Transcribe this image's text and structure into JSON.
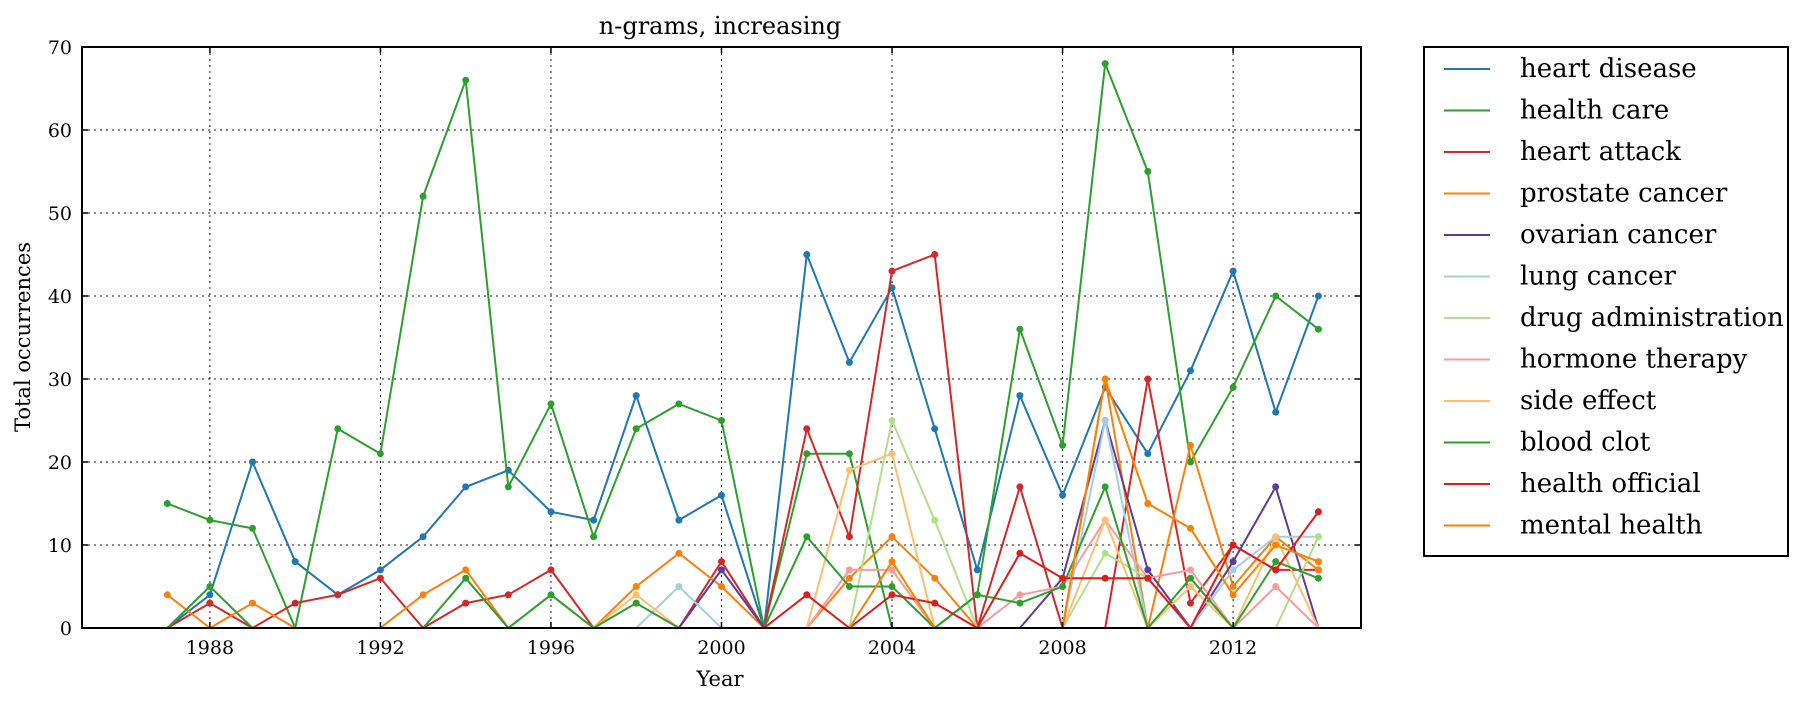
{
  "chart_data": {
    "type": "line",
    "title": "n-grams, increasing",
    "xlabel": "Year",
    "ylabel": "Total occurrences",
    "xlim": [
      1985,
      2015
    ],
    "ylim": [
      0,
      70
    ],
    "xticks": [
      1988,
      1992,
      1996,
      2000,
      2004,
      2008,
      2012
    ],
    "yticks": [
      0,
      10,
      20,
      30,
      40,
      50,
      60,
      70
    ],
    "grid": true,
    "legend_position": "outside-right",
    "x": [
      1987,
      1988,
      1989,
      1990,
      1991,
      1992,
      1993,
      1994,
      1995,
      1996,
      1997,
      1998,
      1999,
      2000,
      2001,
      2002,
      2003,
      2004,
      2005,
      2006,
      2007,
      2008,
      2009,
      2010,
      2011,
      2012,
      2013,
      2014
    ],
    "series": [
      {
        "name": "heart disease",
        "color": "#1f77b4",
        "values": [
          0,
          4,
          20,
          8,
          4,
          7,
          11,
          17,
          19,
          14,
          13,
          28,
          13,
          16,
          0,
          45,
          32,
          41,
          24,
          7,
          28,
          16,
          29,
          21,
          31,
          43,
          26,
          40
        ]
      },
      {
        "name": "health care",
        "color": "#2ca02c",
        "values": [
          15,
          13,
          12,
          0,
          24,
          21,
          52,
          66,
          17,
          27,
          11,
          24,
          27,
          25,
          0,
          21,
          21,
          0,
          0,
          4,
          36,
          22,
          68,
          55,
          20,
          29,
          40,
          36
        ]
      },
      {
        "name": "heart attack",
        "color": "#d62728",
        "values": [
          0,
          3,
          0,
          3,
          4,
          6,
          0,
          3,
          4,
          7,
          0,
          0,
          0,
          8,
          0,
          24,
          11,
          43,
          45,
          0,
          17,
          0,
          0,
          30,
          3,
          10,
          7,
          7
        ]
      },
      {
        "name": "prostate cancer",
        "color": "#ff7f0e",
        "values": [
          4,
          0,
          3,
          0,
          0,
          0,
          4,
          7,
          0,
          0,
          0,
          5,
          9,
          5,
          0,
          0,
          6,
          11,
          6,
          0,
          0,
          0,
          30,
          0,
          22,
          5,
          11,
          7
        ]
      },
      {
        "name": "ovarian cancer",
        "color": "#5e3c99",
        "values": [
          0,
          0,
          0,
          0,
          0,
          0,
          0,
          0,
          0,
          0,
          0,
          0,
          0,
          7,
          0,
          0,
          0,
          0,
          0,
          0,
          0,
          6,
          25,
          7,
          0,
          8,
          17,
          0
        ]
      },
      {
        "name": "lung cancer",
        "color": "#a6cee3",
        "values": [
          0,
          0,
          0,
          0,
          0,
          0,
          0,
          0,
          0,
          0,
          0,
          0,
          5,
          0,
          0,
          0,
          0,
          0,
          0,
          0,
          0,
          0,
          25,
          0,
          0,
          7,
          11,
          11
        ]
      },
      {
        "name": "drug administration",
        "color": "#b2df8a",
        "values": [
          0,
          0,
          0,
          0,
          0,
          0,
          0,
          0,
          0,
          4,
          0,
          0,
          0,
          0,
          0,
          0,
          0,
          25,
          13,
          0,
          0,
          0,
          9,
          6,
          0,
          0,
          0,
          11
        ]
      },
      {
        "name": "hormone therapy",
        "color": "#fb9a99",
        "values": [
          0,
          0,
          0,
          0,
          0,
          0,
          0,
          0,
          0,
          0,
          0,
          0,
          0,
          0,
          0,
          0,
          7,
          7,
          0,
          0,
          4,
          5,
          13,
          6,
          7,
          0,
          5,
          0
        ]
      },
      {
        "name": "side effect",
        "color": "#fdbf6f",
        "values": [
          0,
          0,
          0,
          0,
          0,
          0,
          0,
          0,
          0,
          0,
          0,
          4,
          0,
          0,
          0,
          0,
          19,
          21,
          0,
          0,
          0,
          0,
          13,
          0,
          5,
          0,
          11,
          0
        ]
      },
      {
        "name": "blood clot",
        "color": "#2ca02c",
        "values": [
          0,
          5,
          0,
          0,
          0,
          0,
          0,
          6,
          0,
          4,
          0,
          3,
          0,
          0,
          0,
          11,
          5,
          5,
          0,
          4,
          3,
          5,
          17,
          0,
          6,
          0,
          8,
          6
        ]
      },
      {
        "name": "health official",
        "color": "#e31a1c",
        "values": [
          0,
          0,
          0,
          0,
          0,
          0,
          0,
          0,
          0,
          0,
          0,
          0,
          0,
          0,
          0,
          4,
          0,
          4,
          3,
          0,
          9,
          6,
          6,
          6,
          0,
          10,
          7,
          14
        ]
      },
      {
        "name": "mental health",
        "color": "#ff7f00",
        "values": [
          0,
          0,
          0,
          0,
          0,
          0,
          0,
          0,
          0,
          0,
          0,
          0,
          0,
          0,
          0,
          0,
          0,
          8,
          0,
          0,
          0,
          0,
          30,
          15,
          12,
          4,
          10,
          8
        ]
      }
    ]
  }
}
